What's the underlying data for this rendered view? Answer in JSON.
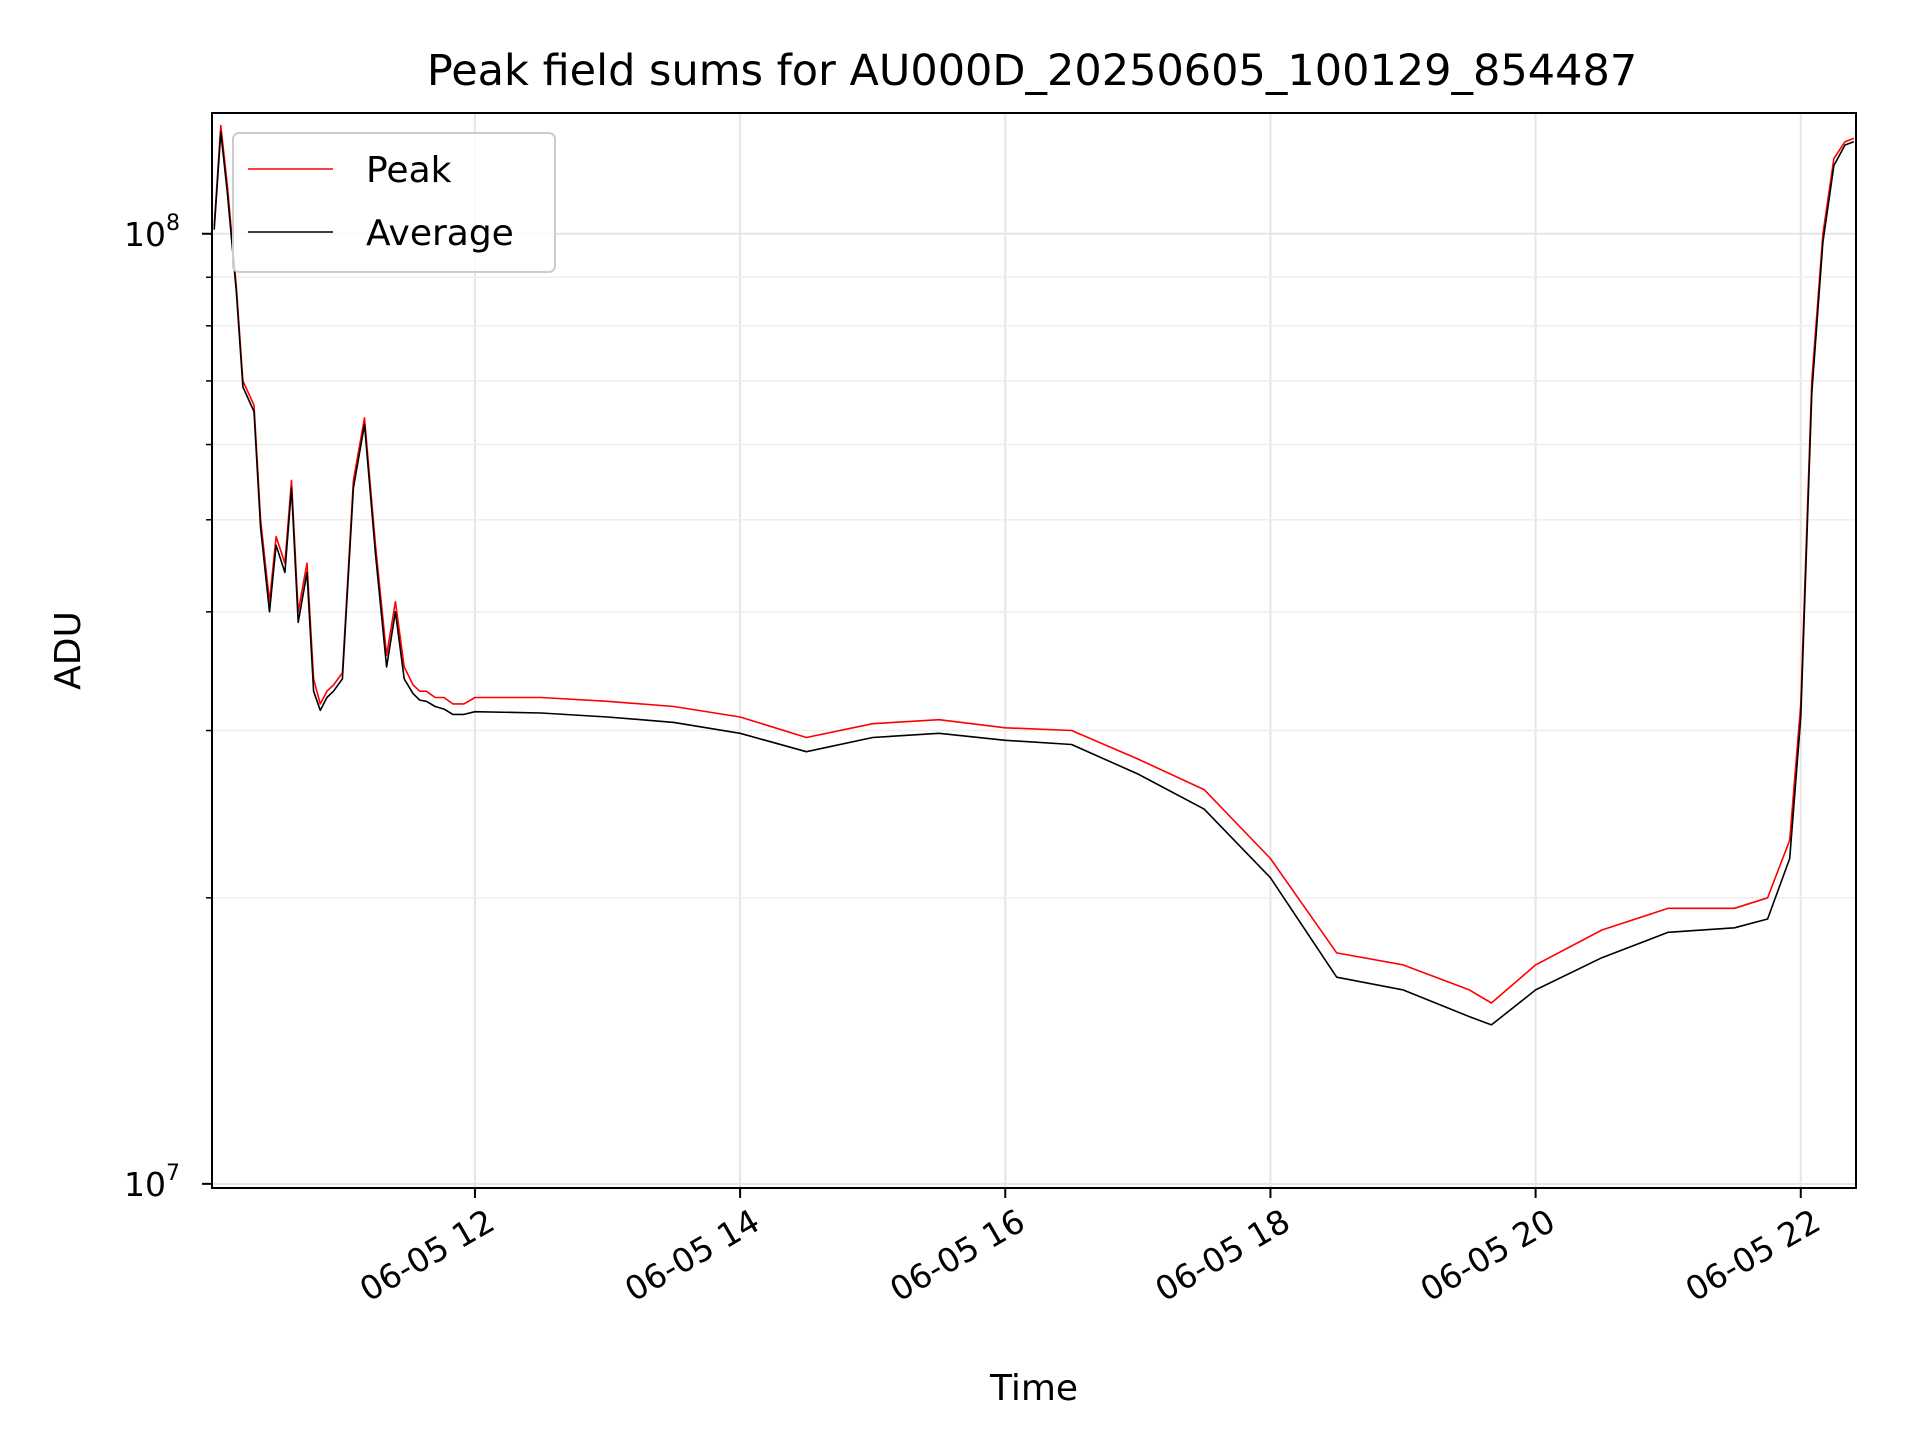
{
  "chart_data": {
    "type": "line",
    "title": "Peak field sums for AU000D_20250605_100129_854487",
    "xlabel": "Time",
    "ylabel": "ADU",
    "x_axis_type": "datetime",
    "y_scale": "log",
    "xlim": [
      "2025-06-05 10:01",
      "2025-06-05 22:25"
    ],
    "ylim": [
      9900000,
      134000000
    ],
    "x_tick_labels": [
      "06-05 12",
      "06-05 14",
      "06-05 16",
      "06-05 18",
      "06-05 20",
      "06-05 22"
    ],
    "x_ticks": [
      "2025-06-05 12:00",
      "2025-06-05 14:00",
      "2025-06-05 16:00",
      "2025-06-05 18:00",
      "2025-06-05 20:00",
      "2025-06-05 22:00"
    ],
    "y_ticks": [
      {
        "value": 10000000,
        "base": "10",
        "exp": "7"
      },
      {
        "value": 100000000,
        "base": "10",
        "exp": "8"
      }
    ],
    "y_minor_ticks": [
      20000000,
      30000000,
      40000000,
      50000000,
      60000000,
      70000000,
      80000000,
      90000000
    ],
    "grid": true,
    "legend_position": "top-left",
    "series": [
      {
        "name": "Peak",
        "color": "#ff0000",
        "x": [
          "2025-06-05 10:02",
          "2025-06-05 10:05",
          "2025-06-05 10:08",
          "2025-06-05 10:12",
          "2025-06-05 10:15",
          "2025-06-05 10:20",
          "2025-06-05 10:23",
          "2025-06-05 10:27",
          "2025-06-05 10:30",
          "2025-06-05 10:34",
          "2025-06-05 10:37",
          "2025-06-05 10:40",
          "2025-06-05 10:44",
          "2025-06-05 10:47",
          "2025-06-05 10:50",
          "2025-06-05 10:53",
          "2025-06-05 10:56",
          "2025-06-05 11:00",
          "2025-06-05 11:05",
          "2025-06-05 11:10",
          "2025-06-05 11:15",
          "2025-06-05 11:20",
          "2025-06-05 11:24",
          "2025-06-05 11:28",
          "2025-06-05 11:32",
          "2025-06-05 11:35",
          "2025-06-05 11:38",
          "2025-06-05 11:42",
          "2025-06-05 11:46",
          "2025-06-05 11:50",
          "2025-06-05 11:55",
          "2025-06-05 12:00",
          "2025-06-05 12:30",
          "2025-06-05 13:00",
          "2025-06-05 13:30",
          "2025-06-05 14:00",
          "2025-06-05 14:30",
          "2025-06-05 15:00",
          "2025-06-05 15:30",
          "2025-06-05 16:00",
          "2025-06-05 16:30",
          "2025-06-05 17:00",
          "2025-06-05 17:30",
          "2025-06-05 18:00",
          "2025-06-05 18:30",
          "2025-06-05 19:00",
          "2025-06-05 19:30",
          "2025-06-05 19:40",
          "2025-06-05 20:00",
          "2025-06-05 20:30",
          "2025-06-05 21:00",
          "2025-06-05 21:30",
          "2025-06-05 21:45",
          "2025-06-05 21:55",
          "2025-06-05 22:00",
          "2025-06-05 22:05",
          "2025-06-05 22:10",
          "2025-06-05 22:15",
          "2025-06-05 22:20",
          "2025-06-05 22:24"
        ],
        "values": [
          102000000,
          130000000,
          112000000,
          88000000,
          70000000,
          66000000,
          50000000,
          41000000,
          48000000,
          45000000,
          55000000,
          40000000,
          45000000,
          34000000,
          32000000,
          33000000,
          33500000,
          34500000,
          55000000,
          64000000,
          47000000,
          36000000,
          41000000,
          35000000,
          33500000,
          33000000,
          33000000,
          32500000,
          32500000,
          32000000,
          32000000,
          32500000,
          32500000,
          32200000,
          31800000,
          31000000,
          29500000,
          30500000,
          30800000,
          30200000,
          30000000,
          28000000,
          26000000,
          22000000,
          17500000,
          17000000,
          16000000,
          15500000,
          17000000,
          18500000,
          19500000,
          19500000,
          20000000,
          23000000,
          32000000,
          70000000,
          100000000,
          120000000,
          125000000,
          126000000
        ]
      },
      {
        "name": "Average",
        "color": "#000000",
        "x": [
          "2025-06-05 10:02",
          "2025-06-05 10:05",
          "2025-06-05 10:08",
          "2025-06-05 10:12",
          "2025-06-05 10:15",
          "2025-06-05 10:20",
          "2025-06-05 10:23",
          "2025-06-05 10:27",
          "2025-06-05 10:30",
          "2025-06-05 10:34",
          "2025-06-05 10:37",
          "2025-06-05 10:40",
          "2025-06-05 10:44",
          "2025-06-05 10:47",
          "2025-06-05 10:50",
          "2025-06-05 10:53",
          "2025-06-05 10:56",
          "2025-06-05 11:00",
          "2025-06-05 11:05",
          "2025-06-05 11:10",
          "2025-06-05 11:15",
          "2025-06-05 11:20",
          "2025-06-05 11:24",
          "2025-06-05 11:28",
          "2025-06-05 11:32",
          "2025-06-05 11:35",
          "2025-06-05 11:38",
          "2025-06-05 11:42",
          "2025-06-05 11:46",
          "2025-06-05 11:50",
          "2025-06-05 11:55",
          "2025-06-05 12:00",
          "2025-06-05 12:30",
          "2025-06-05 13:00",
          "2025-06-05 13:30",
          "2025-06-05 14:00",
          "2025-06-05 14:30",
          "2025-06-05 15:00",
          "2025-06-05 15:30",
          "2025-06-05 16:00",
          "2025-06-05 16:30",
          "2025-06-05 17:00",
          "2025-06-05 17:30",
          "2025-06-05 18:00",
          "2025-06-05 18:30",
          "2025-06-05 19:00",
          "2025-06-05 19:30",
          "2025-06-05 19:40",
          "2025-06-05 20:00",
          "2025-06-05 20:30",
          "2025-06-05 21:00",
          "2025-06-05 21:30",
          "2025-06-05 21:45",
          "2025-06-05 21:55",
          "2025-06-05 22:00",
          "2025-06-05 22:05",
          "2025-06-05 22:10",
          "2025-06-05 22:15",
          "2025-06-05 22:20",
          "2025-06-05 22:24"
        ],
        "values": [
          101000000,
          128000000,
          110000000,
          87000000,
          69000000,
          65000000,
          49000000,
          40000000,
          47000000,
          44000000,
          54000000,
          39000000,
          44000000,
          33000000,
          31500000,
          32500000,
          33000000,
          34000000,
          54000000,
          63000000,
          46000000,
          35000000,
          40000000,
          34000000,
          32800000,
          32300000,
          32200000,
          31800000,
          31600000,
          31200000,
          31200000,
          31400000,
          31300000,
          31000000,
          30600000,
          29800000,
          28500000,
          29500000,
          29800000,
          29300000,
          29000000,
          27000000,
          24800000,
          21000000,
          16500000,
          16000000,
          15000000,
          14700000,
          16000000,
          17300000,
          18400000,
          18600000,
          19000000,
          22000000,
          31000000,
          68000000,
          98000000,
          118000000,
          124000000,
          125000000
        ]
      }
    ]
  }
}
